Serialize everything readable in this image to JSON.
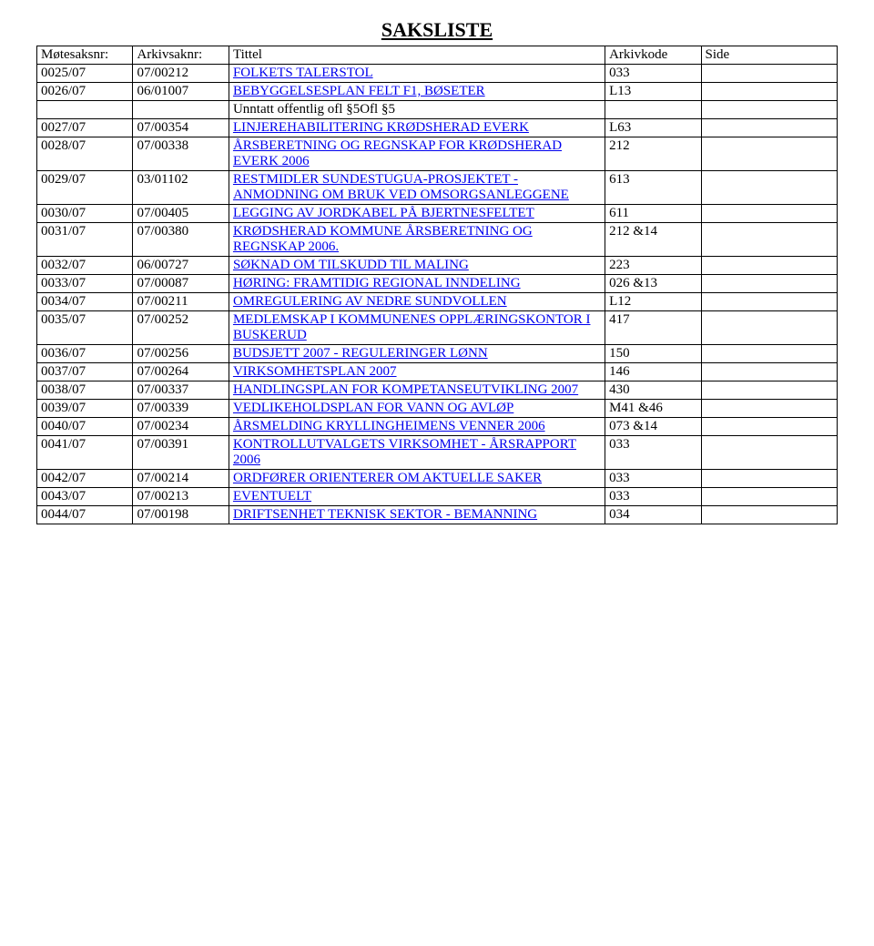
{
  "title": "SAKSLISTE",
  "headers": {
    "col1": "Møtesaksnr:",
    "col2": "Arkivsaknr:",
    "col3": "Tittel",
    "col4": "Arkivkode",
    "col5": "Side"
  },
  "rows": [
    {
      "mote": "0025/07",
      "arkiv": "07/00212",
      "tittel": "FOLKETS TALERSTOL",
      "link": true,
      "kode": "033",
      "side": ""
    },
    {
      "mote": "0026/07",
      "arkiv": "06/01007",
      "tittel": "BEBYGGELSESPLAN FELT F1, BØSETER",
      "link": true,
      "kode": "L13",
      "side": ""
    },
    {
      "mote": "",
      "arkiv": "",
      "tittel": "Unntatt offentlig ofl §5Ofl §5",
      "link": false,
      "kode": "",
      "side": "",
      "noborder": true
    },
    {
      "mote": "0027/07",
      "arkiv": "07/00354",
      "tittel": "LINJEREHABILITERING KRØDSHERAD EVERK",
      "link": true,
      "kode": "L63",
      "side": ""
    },
    {
      "mote": "0028/07",
      "arkiv": "07/00338",
      "tittel": "ÅRSBERETNING OG REGNSKAP FOR KRØDSHERAD EVERK 2006",
      "link": true,
      "kode": "212",
      "side": ""
    },
    {
      "mote": "0029/07",
      "arkiv": "03/01102",
      "tittel": "RESTMIDLER SUNDESTUGUA-PROSJEKTET - ANMODNING OM BRUK VED OMSORGSANLEGGENE",
      "link": true,
      "kode": "613",
      "side": ""
    },
    {
      "mote": "0030/07",
      "arkiv": "07/00405",
      "tittel": "LEGGING AV JORDKABEL PÅ BJERTNESFELTET",
      "link": true,
      "kode": "611",
      "side": ""
    },
    {
      "mote": "0031/07",
      "arkiv": "07/00380",
      "tittel": "KRØDSHERAD KOMMUNE ÅRSBERETNING OG REGNSKAP 2006.",
      "link": true,
      "kode": "212 &14",
      "side": ""
    },
    {
      "mote": "0032/07",
      "arkiv": "06/00727",
      "tittel": "SØKNAD OM TILSKUDD TIL MALING",
      "link": true,
      "kode": "223",
      "side": ""
    },
    {
      "mote": "0033/07",
      "arkiv": "07/00087",
      "tittel": "HØRING: FRAMTIDIG REGIONAL INNDELING",
      "link": true,
      "kode": "026 &13",
      "side": ""
    },
    {
      "mote": "0034/07",
      "arkiv": "07/00211",
      "tittel": "OMREGULERING AV NEDRE SUNDVOLLEN",
      "link": true,
      "kode": "L12",
      "side": ""
    },
    {
      "mote": "0035/07",
      "arkiv": "07/00252",
      "tittel": "MEDLEMSKAP I KOMMUNENES OPPLÆRINGSKONTOR I BUSKERUD",
      "link": true,
      "kode": "417",
      "side": ""
    },
    {
      "mote": "0036/07",
      "arkiv": "07/00256",
      "tittel": "BUDSJETT 2007 - REGULERINGER LØNN",
      "link": true,
      "kode": "150",
      "side": ""
    },
    {
      "mote": "0037/07",
      "arkiv": "07/00264",
      "tittel": "VIRKSOMHETSPLAN 2007",
      "link": true,
      "kode": "146",
      "side": ""
    },
    {
      "mote": "0038/07",
      "arkiv": "07/00337",
      "tittel": "HANDLINGSPLAN FOR KOMPETANSEUTVIKLING 2007",
      "link": true,
      "kode": "430",
      "side": ""
    },
    {
      "mote": "0039/07",
      "arkiv": "07/00339",
      "tittel": "VEDLIKEHOLDSPLAN FOR VANN OG AVLØP",
      "link": true,
      "kode": "M41 &46",
      "side": ""
    },
    {
      "mote": "0040/07",
      "arkiv": "07/00234",
      "tittel": "ÅRSMELDING KRYLLINGHEIMENS VENNER 2006",
      "link": true,
      "kode": "073 &14",
      "side": ""
    },
    {
      "mote": "0041/07",
      "arkiv": "07/00391",
      "tittel": "KONTROLLUTVALGETS VIRKSOMHET - ÅRSRAPPORT 2006",
      "link": true,
      "kode": "033",
      "side": ""
    },
    {
      "mote": "0042/07",
      "arkiv": "07/00214",
      "tittel": "ORDFØRER ORIENTERER OM AKTUELLE SAKER",
      "link": true,
      "kode": "033",
      "side": ""
    },
    {
      "mote": "0043/07",
      "arkiv": "07/00213",
      "tittel": "EVENTUELT",
      "link": true,
      "kode": "033",
      "side": ""
    },
    {
      "mote": "0044/07",
      "arkiv": "07/00198",
      "tittel": "DRIFTSENHET TEKNISK SEKTOR - BEMANNING",
      "link": true,
      "kode": "034",
      "side": ""
    }
  ]
}
